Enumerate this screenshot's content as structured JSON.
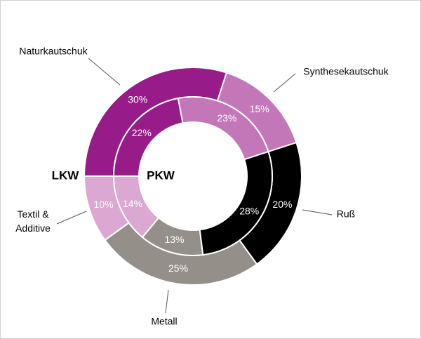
{
  "chart_data": {
    "type": "nested-donut",
    "categories": [
      "Naturkautschuk",
      "Synthesekautschuk",
      "Ruß",
      "Metall",
      "Textil & Additive"
    ],
    "colors": [
      "#971b88",
      "#c377b9",
      "#000000",
      "#958f89",
      "#dba8d3"
    ],
    "series": [
      {
        "name": "LKW",
        "values": [
          30,
          15,
          20,
          25,
          10
        ],
        "value_labels": [
          "30%",
          "15%",
          "20%",
          "25%",
          "10%"
        ]
      },
      {
        "name": "PKW",
        "values": [
          22,
          23,
          28,
          13,
          14
        ],
        "value_labels": [
          "22%",
          "23%",
          "28%",
          "13%",
          "14%"
        ]
      }
    ]
  }
}
